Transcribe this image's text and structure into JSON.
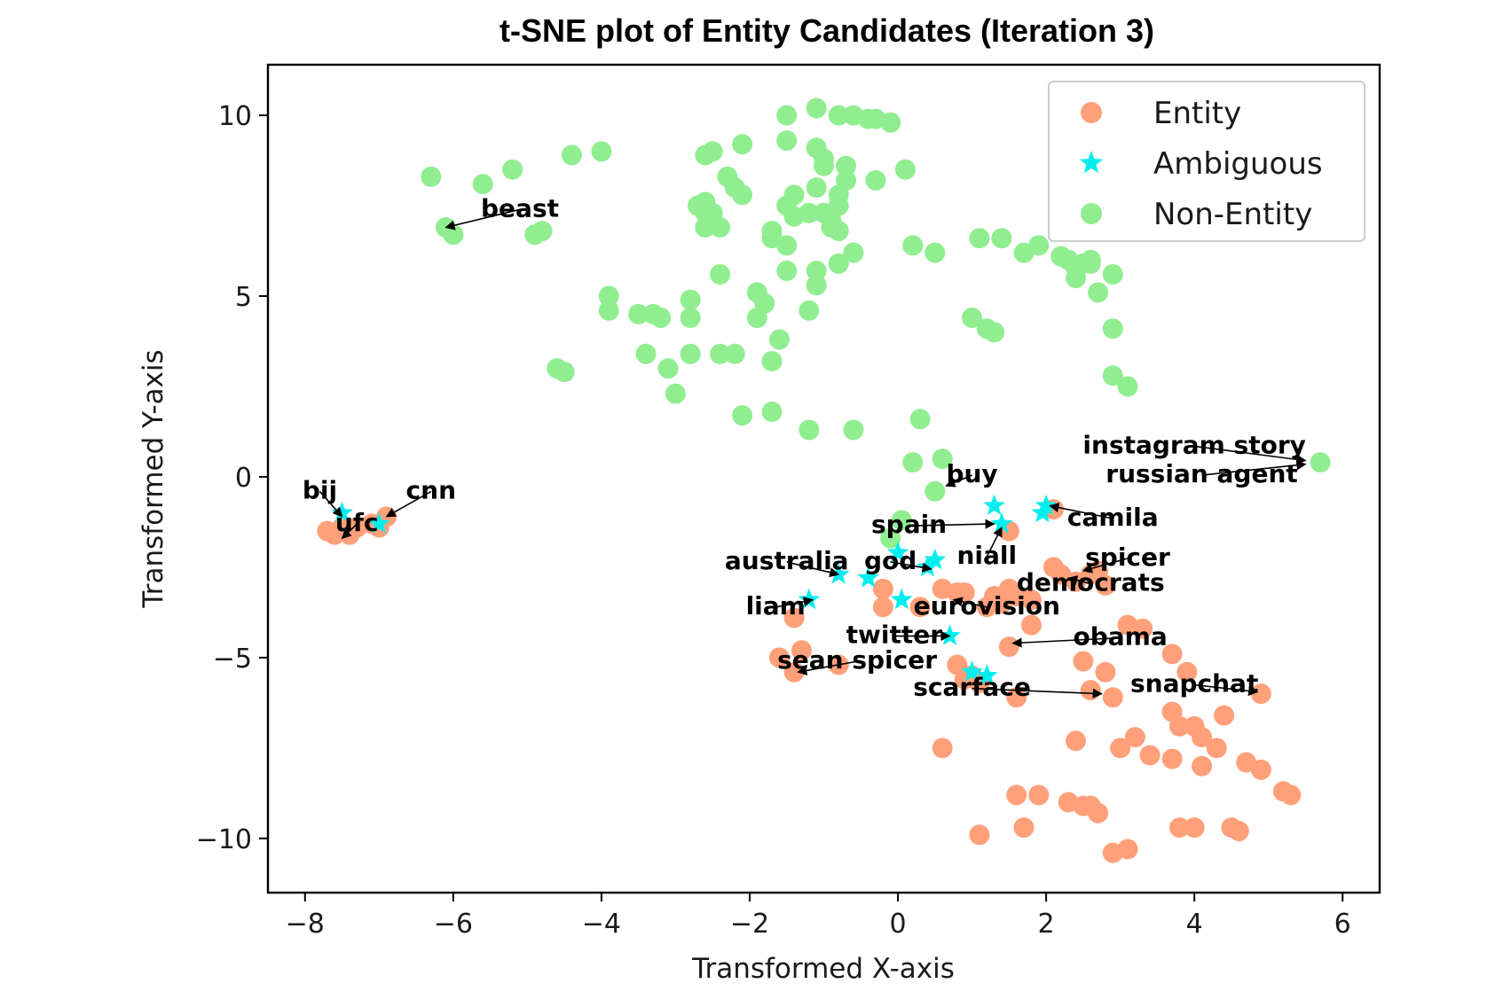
{
  "chart_data": {
    "type": "scatter",
    "title": "t-SNE plot of Entity Candidates (Iteration 3)",
    "xlabel": "Transformed X-axis",
    "ylabel": "Transformed Y-axis",
    "xlim": [
      -8.5,
      6.5
    ],
    "ylim": [
      -11.5,
      11.4
    ],
    "x_ticks": [
      -8,
      -6,
      -4,
      -2,
      0,
      2,
      4,
      6
    ],
    "x_tick_labels": [
      "−8",
      "−6",
      "−4",
      "−2",
      "0",
      "2",
      "4",
      "6"
    ],
    "y_ticks": [
      10,
      5,
      0,
      -5,
      -10
    ],
    "y_tick_labels": [
      "10",
      "5",
      "0",
      "−5",
      "−10"
    ],
    "grid": false,
    "legend_position": "top-right",
    "series": [
      {
        "name": "Entity",
        "marker": "circle",
        "color": "#ffa07a",
        "points": [
          [
            -7.7,
            -1.5
          ],
          [
            -7.6,
            -1.6
          ],
          [
            -7.5,
            -1.4
          ],
          [
            -7.4,
            -1.6
          ],
          [
            -7.3,
            -1.4
          ],
          [
            -7.1,
            -1.3
          ],
          [
            -7.0,
            -1.4
          ],
          [
            -6.9,
            -1.1
          ],
          [
            -1.6,
            -5.0
          ],
          [
            -1.4,
            -5.4
          ],
          [
            -1.3,
            -4.8
          ],
          [
            -1.4,
            -3.9
          ],
          [
            -0.8,
            -5.2
          ],
          [
            -0.2,
            -3.6
          ],
          [
            -0.2,
            -3.1
          ],
          [
            0.3,
            -3.6
          ],
          [
            0.6,
            -3.1
          ],
          [
            0.8,
            -3.2
          ],
          [
            0.9,
            -3.2
          ],
          [
            1.2,
            -3.6
          ],
          [
            1.3,
            -3.3
          ],
          [
            1.4,
            -3.5
          ],
          [
            1.5,
            -3.1
          ],
          [
            1.6,
            -3.3
          ],
          [
            1.8,
            -3.4
          ],
          [
            1.8,
            -4.1
          ],
          [
            1.5,
            -4.7
          ],
          [
            0.8,
            -5.2
          ],
          [
            0.9,
            -5.6
          ],
          [
            1.0,
            -5.5
          ],
          [
            1.1,
            -5.7
          ],
          [
            1.6,
            -6.1
          ],
          [
            2.1,
            -2.5
          ],
          [
            2.2,
            -2.7
          ],
          [
            2.4,
            -2.9
          ],
          [
            2.6,
            -2.7
          ],
          [
            2.7,
            -2.6
          ],
          [
            2.8,
            -3.0
          ],
          [
            1.5,
            -1.5
          ],
          [
            2.1,
            -0.9
          ],
          [
            2.5,
            -5.1
          ],
          [
            2.6,
            -5.9
          ],
          [
            2.8,
            -5.4
          ],
          [
            2.9,
            -6.1
          ],
          [
            3.1,
            -4.1
          ],
          [
            3.3,
            -4.2
          ],
          [
            3.7,
            -4.9
          ],
          [
            3.9,
            -5.4
          ],
          [
            3.7,
            -6.5
          ],
          [
            3.8,
            -6.9
          ],
          [
            4.0,
            -6.9
          ],
          [
            4.1,
            -7.2
          ],
          [
            4.3,
            -7.5
          ],
          [
            4.4,
            -6.6
          ],
          [
            4.9,
            -6.0
          ],
          [
            2.4,
            -7.3
          ],
          [
            3.0,
            -7.5
          ],
          [
            3.2,
            -7.2
          ],
          [
            3.4,
            -7.7
          ],
          [
            3.7,
            -7.8
          ],
          [
            4.1,
            -8.0
          ],
          [
            4.7,
            -7.9
          ],
          [
            4.9,
            -8.1
          ],
          [
            5.2,
            -8.7
          ],
          [
            5.3,
            -8.8
          ],
          [
            0.6,
            -7.5
          ],
          [
            1.1,
            -9.9
          ],
          [
            1.6,
            -8.8
          ],
          [
            1.7,
            -9.7
          ],
          [
            1.9,
            -8.8
          ],
          [
            2.3,
            -9.0
          ],
          [
            2.5,
            -9.1
          ],
          [
            2.6,
            -9.1
          ],
          [
            2.7,
            -9.3
          ],
          [
            2.9,
            -10.4
          ],
          [
            3.1,
            -10.3
          ],
          [
            3.8,
            -9.7
          ],
          [
            4.0,
            -9.7
          ],
          [
            4.5,
            -9.7
          ],
          [
            4.6,
            -9.8
          ]
        ]
      },
      {
        "name": "Ambiguous",
        "marker": "star",
        "color": "#00eeee",
        "points": [
          [
            -7.5,
            -1.0
          ],
          [
            -7.0,
            -1.3
          ],
          [
            1.3,
            -0.8
          ],
          [
            1.4,
            -1.3
          ],
          [
            2.0,
            -0.8
          ],
          [
            1.95,
            -1.0
          ],
          [
            0.0,
            -2.1
          ],
          [
            0.4,
            -2.5
          ],
          [
            0.5,
            -2.3
          ],
          [
            -0.8,
            -2.7
          ],
          [
            -0.4,
            -2.8
          ],
          [
            0.05,
            -3.4
          ],
          [
            -1.2,
            -3.4
          ],
          [
            0.7,
            -4.4
          ],
          [
            1.0,
            -5.4
          ],
          [
            1.2,
            -5.5
          ]
        ]
      },
      {
        "name": "Non-Entity",
        "marker": "circle",
        "color": "#90ee90",
        "points": [
          [
            -6.3,
            8.3
          ],
          [
            -6.1,
            6.9
          ],
          [
            -6.0,
            6.7
          ],
          [
            -5.6,
            8.1
          ],
          [
            -5.2,
            8.5
          ],
          [
            -4.9,
            6.7
          ],
          [
            -4.8,
            6.8
          ],
          [
            -4.4,
            8.9
          ],
          [
            -4.0,
            9.0
          ],
          [
            -3.9,
            5.0
          ],
          [
            -3.9,
            4.6
          ],
          [
            -3.5,
            4.5
          ],
          [
            -3.3,
            4.5
          ],
          [
            -3.2,
            4.4
          ],
          [
            -3.4,
            3.4
          ],
          [
            -3.1,
            3.0
          ],
          [
            -3.0,
            2.3
          ],
          [
            -4.6,
            3.0
          ],
          [
            -4.5,
            2.9
          ],
          [
            -2.8,
            4.9
          ],
          [
            -2.8,
            4.4
          ],
          [
            -2.8,
            3.4
          ],
          [
            -2.4,
            5.6
          ],
          [
            -2.4,
            3.4
          ],
          [
            -2.2,
            3.4
          ],
          [
            -2.6,
            8.9
          ],
          [
            -2.5,
            9.0
          ],
          [
            -2.3,
            8.3
          ],
          [
            -2.2,
            8.0
          ],
          [
            -2.1,
            7.8
          ],
          [
            -2.1,
            9.2
          ],
          [
            -2.7,
            7.5
          ],
          [
            -2.6,
            7.6
          ],
          [
            -2.6,
            7.3
          ],
          [
            -2.5,
            7.3
          ],
          [
            -2.6,
            6.9
          ],
          [
            -2.4,
            6.9
          ],
          [
            -1.9,
            5.1
          ],
          [
            -1.9,
            4.4
          ],
          [
            -1.8,
            4.8
          ],
          [
            -1.7,
            3.2
          ],
          [
            -1.6,
            3.8
          ],
          [
            -1.5,
            5.7
          ],
          [
            -1.7,
            6.8
          ],
          [
            -1.7,
            6.6
          ],
          [
            -1.5,
            6.4
          ],
          [
            -1.5,
            7.5
          ],
          [
            -1.4,
            7.8
          ],
          [
            -1.4,
            7.2
          ],
          [
            -1.5,
            10.0
          ],
          [
            -1.5,
            9.3
          ],
          [
            -1.2,
            7.3
          ],
          [
            -1.2,
            4.6
          ],
          [
            -1.1,
            5.3
          ],
          [
            -1.1,
            5.7
          ],
          [
            -1.1,
            8.0
          ],
          [
            -1.1,
            9.1
          ],
          [
            -1.0,
            8.8
          ],
          [
            -1.0,
            8.6
          ],
          [
            -1.0,
            7.3
          ],
          [
            -0.9,
            7.1
          ],
          [
            -0.9,
            6.9
          ],
          [
            -0.8,
            6.8
          ],
          [
            -0.8,
            7.5
          ],
          [
            -0.8,
            7.8
          ],
          [
            -0.7,
            8.6
          ],
          [
            -0.7,
            8.2
          ],
          [
            -0.8,
            5.9
          ],
          [
            -0.6,
            6.2
          ],
          [
            -1.1,
            10.2
          ],
          [
            -0.8,
            10.0
          ],
          [
            -0.6,
            10.0
          ],
          [
            -0.4,
            9.9
          ],
          [
            -0.3,
            9.9
          ],
          [
            -0.1,
            9.8
          ],
          [
            -0.3,
            8.2
          ],
          [
            0.1,
            8.5
          ],
          [
            0.2,
            6.4
          ],
          [
            0.5,
            6.2
          ],
          [
            -2.1,
            1.7
          ],
          [
            -1.7,
            1.8
          ],
          [
            -1.2,
            1.3
          ],
          [
            -0.6,
            1.3
          ],
          [
            0.3,
            1.6
          ],
          [
            0.2,
            0.4
          ],
          [
            0.6,
            0.5
          ],
          [
            0.5,
            -0.4
          ],
          [
            -0.1,
            -1.7
          ],
          [
            0.05,
            -1.2
          ],
          [
            1.1,
            6.6
          ],
          [
            1.4,
            6.6
          ],
          [
            1.7,
            6.2
          ],
          [
            1.9,
            6.4
          ],
          [
            2.2,
            6.1
          ],
          [
            2.3,
            6.0
          ],
          [
            2.4,
            5.8
          ],
          [
            2.4,
            5.5
          ],
          [
            2.5,
            5.9
          ],
          [
            2.6,
            5.9
          ],
          [
            2.6,
            6.0
          ],
          [
            2.7,
            5.1
          ],
          [
            2.9,
            5.6
          ],
          [
            2.9,
            4.1
          ],
          [
            2.9,
            2.8
          ],
          [
            3.1,
            2.5
          ],
          [
            1.0,
            4.4
          ],
          [
            1.2,
            4.1
          ],
          [
            1.3,
            4.0
          ],
          [
            5.7,
            0.4
          ]
        ]
      }
    ],
    "annotations": [
      {
        "text": "beast",
        "label": [
          -5.1,
          7.2
        ],
        "target": [
          -6.1,
          6.9
        ]
      },
      {
        "text": "bij",
        "label": [
          -7.8,
          -0.6
        ],
        "target": [
          -7.5,
          -1.1
        ]
      },
      {
        "text": "cnn",
        "label": [
          -6.3,
          -0.6
        ],
        "target": [
          -6.9,
          -1.1
        ]
      },
      {
        "text": "ufc",
        "label": [
          -7.3,
          -1.5
        ],
        "target": [
          -7.5,
          -1.7
        ]
      },
      {
        "text": "buy",
        "label": [
          1.0,
          -0.15
        ],
        "target": [
          0.65,
          -0.25
        ]
      },
      {
        "text": "instagram story",
        "label": [
          4.0,
          0.65
        ],
        "target": [
          5.5,
          0.45
        ]
      },
      {
        "text": "russian agent",
        "label": [
          4.1,
          -0.15
        ],
        "target": [
          5.5,
          0.35
        ]
      },
      {
        "text": "camila",
        "label": [
          2.9,
          -1.35
        ],
        "target": [
          2.05,
          -0.8
        ]
      },
      {
        "text": "spain",
        "label": [
          0.15,
          -1.55
        ],
        "target": [
          1.3,
          -1.3
        ]
      },
      {
        "text": "niall",
        "label": [
          1.2,
          -2.4
        ],
        "target": [
          1.4,
          -1.4
        ]
      },
      {
        "text": "australia",
        "label": [
          -1.5,
          -2.55
        ],
        "target": [
          -0.8,
          -2.7
        ]
      },
      {
        "text": "god",
        "label": [
          -0.1,
          -2.55
        ],
        "target": [
          0.45,
          -2.55
        ]
      },
      {
        "text": "spicer",
        "label": [
          3.1,
          -2.45
        ],
        "target": [
          2.5,
          -2.6
        ]
      },
      {
        "text": "democrats",
        "label": [
          2.6,
          -3.15
        ],
        "target": [
          2.3,
          -2.8
        ]
      },
      {
        "text": "liam",
        "label": [
          -1.65,
          -3.8
        ],
        "target": [
          -1.15,
          -3.4
        ]
      },
      {
        "text": "eurovision",
        "label": [
          1.2,
          -3.8
        ],
        "target": [
          0.75,
          -3.4
        ]
      },
      {
        "text": "twitter",
        "label": [
          -0.05,
          -4.6
        ],
        "target": [
          0.7,
          -4.4
        ]
      },
      {
        "text": "obama",
        "label": [
          3.0,
          -4.65
        ],
        "target": [
          1.55,
          -4.6
        ]
      },
      {
        "text": "sean spicer",
        "label": [
          -0.55,
          -5.3
        ],
        "target": [
          -1.35,
          -5.4
        ]
      },
      {
        "text": "scarface",
        "label": [
          1.0,
          -6.05
        ],
        "target": [
          2.75,
          -6.0
        ]
      },
      {
        "text": "snapchat",
        "label": [
          4.0,
          -5.95
        ],
        "target": [
          4.85,
          -5.95
        ]
      }
    ]
  }
}
